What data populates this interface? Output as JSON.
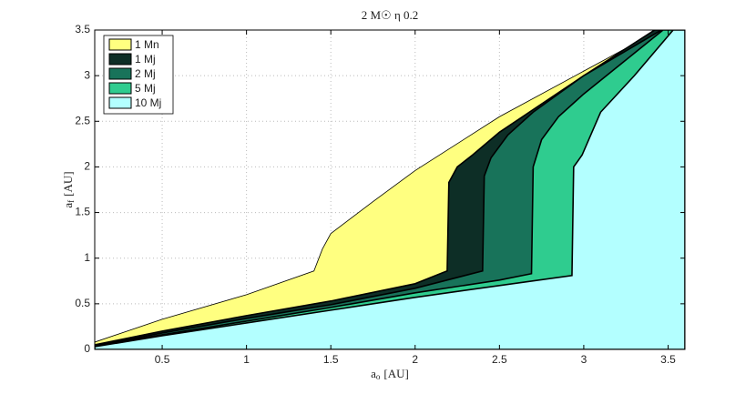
{
  "chart_data": {
    "type": "area",
    "title": "2 M☉ η 0.2",
    "xlabel": {
      "main": "a",
      "sub": "o",
      "unit": "[AU]"
    },
    "ylabel": {
      "main": "a",
      "sub": "f",
      "unit": "[AU]"
    },
    "xlim": [
      0.1,
      3.6
    ],
    "ylim": [
      0,
      3.5
    ],
    "xticks": [
      0.5,
      1,
      1.5,
      2,
      2.5,
      3,
      3.5
    ],
    "yticks": [
      0,
      0.5,
      1,
      1.5,
      2,
      2.5,
      3,
      3.5
    ],
    "grid": true,
    "legend": "top-left",
    "series": [
      {
        "name": "1 Mn",
        "color": "#ffff80",
        "x": [
          0.1,
          0.5,
          1.0,
          1.4,
          1.45,
          1.5,
          1.75,
          2.0,
          2.5,
          3.0,
          3.45
        ],
        "values": [
          0.08,
          0.33,
          0.6,
          0.86,
          1.1,
          1.27,
          1.62,
          1.96,
          2.55,
          3.05,
          3.5
        ]
      },
      {
        "name": "1 Mj",
        "color": "#0d2e26",
        "x": [
          0.1,
          0.5,
          1.0,
          1.5,
          2.0,
          2.19,
          2.2,
          2.25,
          2.34,
          2.5,
          3.0,
          3.42
        ],
        "values": [
          0.05,
          0.2,
          0.37,
          0.53,
          0.72,
          0.86,
          1.83,
          2.0,
          2.13,
          2.38,
          3.0,
          3.5
        ]
      },
      {
        "name": "2 Mj",
        "color": "#18735a",
        "x": [
          0.1,
          0.5,
          1.0,
          1.5,
          2.0,
          2.4,
          2.41,
          2.45,
          2.55,
          2.7,
          3.0,
          3.46
        ],
        "values": [
          0.04,
          0.18,
          0.34,
          0.49,
          0.67,
          0.86,
          1.9,
          2.1,
          2.35,
          2.6,
          3.0,
          3.5
        ]
      },
      {
        "name": "5 Mj",
        "color": "#2fcc8f",
        "x": [
          0.1,
          0.5,
          1.0,
          1.5,
          2.0,
          2.5,
          2.69,
          2.7,
          2.75,
          2.85,
          3.0,
          3.47
        ],
        "values": [
          0.035,
          0.16,
          0.31,
          0.46,
          0.62,
          0.76,
          0.83,
          2.0,
          2.3,
          2.55,
          2.8,
          3.5
        ]
      },
      {
        "name": "10 Mj",
        "color": "#b3ffff",
        "x": [
          0.1,
          0.5,
          1.0,
          1.5,
          2.0,
          2.5,
          2.93,
          2.94,
          2.99,
          3.1,
          3.3,
          3.53
        ],
        "values": [
          0.03,
          0.15,
          0.29,
          0.43,
          0.57,
          0.7,
          0.81,
          2.0,
          2.13,
          2.6,
          3.0,
          3.5
        ]
      }
    ]
  }
}
